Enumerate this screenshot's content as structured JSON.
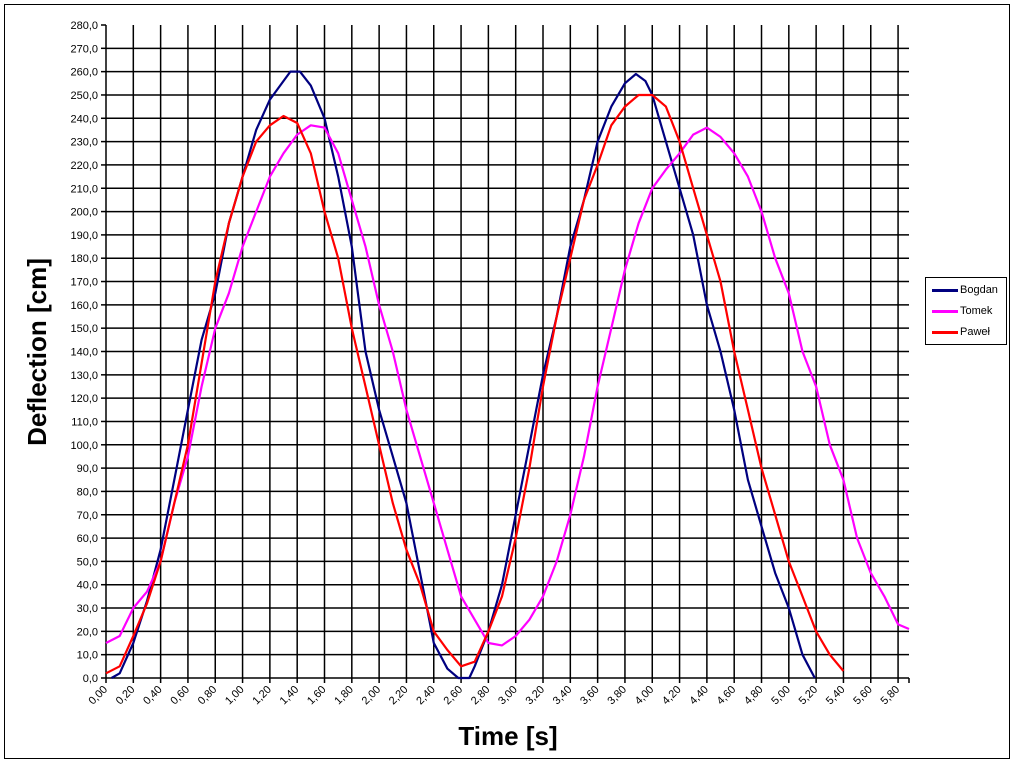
{
  "chart_data": {
    "type": "line",
    "xlabel": "Time [s]",
    "ylabel": "Deflection [cm]",
    "xlim": [
      0,
      5.88
    ],
    "ylim": [
      0,
      280
    ],
    "x_ticks": [
      "0,00",
      "0,20",
      "0,40",
      "0,60",
      "0,80",
      "1,00",
      "1,20",
      "1,40",
      "1,60",
      "1,80",
      "2,00",
      "2,20",
      "2,40",
      "2,60",
      "2,80",
      "3,00",
      "3,20",
      "3,40",
      "3,60",
      "3,80",
      "4,00",
      "4,20",
      "4,40",
      "4,60",
      "4,80",
      "5,00",
      "5,20",
      "5,40",
      "5,60",
      "5,80"
    ],
    "y_ticks": [
      "0,0",
      "10,0",
      "20,0",
      "30,0",
      "40,0",
      "50,0",
      "60,0",
      "70,0",
      "80,0",
      "90,0",
      "100,0",
      "110,0",
      "120,0",
      "130,0",
      "140,0",
      "150,0",
      "160,0",
      "170,0",
      "180,0",
      "190,0",
      "200,0",
      "210,0",
      "220,0",
      "230,0",
      "240,0",
      "250,0",
      "260,0",
      "270,0",
      "280,0"
    ],
    "grid": true,
    "legend_position": "right",
    "series": [
      {
        "name": "Bogdan",
        "color": "#000080",
        "x": [
          0.04,
          0.1,
          0.2,
          0.3,
          0.4,
          0.5,
          0.6,
          0.7,
          0.8,
          0.9,
          1.0,
          1.1,
          1.2,
          1.3,
          1.35,
          1.42,
          1.5,
          1.6,
          1.7,
          1.8,
          1.9,
          2.0,
          2.1,
          2.2,
          2.3,
          2.4,
          2.5,
          2.58,
          2.66,
          2.7,
          2.8,
          2.9,
          3.0,
          3.1,
          3.2,
          3.3,
          3.4,
          3.5,
          3.6,
          3.7,
          3.8,
          3.88,
          3.95,
          4.0,
          4.1,
          4.2,
          4.3,
          4.4,
          4.5,
          4.6,
          4.7,
          4.8,
          4.9,
          5.0,
          5.1,
          5.19
        ],
        "y": [
          0,
          2,
          15,
          33,
          55,
          85,
          115,
          145,
          165,
          195,
          215,
          235,
          248,
          256,
          260,
          260,
          254,
          240,
          215,
          185,
          140,
          115,
          95,
          75,
          45,
          15,
          4,
          0,
          0,
          5,
          20,
          40,
          70,
          100,
          130,
          155,
          185,
          205,
          230,
          245,
          255,
          259,
          256,
          250,
          230,
          210,
          190,
          160,
          140,
          115,
          85,
          65,
          45,
          30,
          10,
          0
        ]
      },
      {
        "name": "Tomek",
        "color": "#FF00FF",
        "x": [
          0.0,
          0.1,
          0.2,
          0.3,
          0.4,
          0.5,
          0.6,
          0.7,
          0.8,
          0.9,
          1.0,
          1.1,
          1.2,
          1.3,
          1.4,
          1.5,
          1.6,
          1.7,
          1.8,
          1.9,
          2.0,
          2.1,
          2.2,
          2.3,
          2.4,
          2.5,
          2.6,
          2.7,
          2.8,
          2.9,
          3.0,
          3.1,
          3.2,
          3.3,
          3.4,
          3.5,
          3.6,
          3.7,
          3.8,
          3.9,
          4.0,
          4.1,
          4.2,
          4.3,
          4.4,
          4.5,
          4.6,
          4.7,
          4.8,
          4.9,
          5.0,
          5.1,
          5.2,
          5.3,
          5.4,
          5.5,
          5.6,
          5.7,
          5.8,
          5.88
        ],
        "y": [
          15,
          18,
          30,
          37,
          50,
          75,
          95,
          125,
          150,
          165,
          185,
          200,
          215,
          225,
          233,
          237,
          236,
          225,
          205,
          185,
          160,
          140,
          115,
          95,
          75,
          55,
          35,
          25,
          15,
          14,
          18,
          25,
          35,
          50,
          70,
          95,
          125,
          150,
          175,
          195,
          210,
          218,
          225,
          233,
          236,
          232,
          225,
          215,
          200,
          180,
          165,
          140,
          125,
          100,
          85,
          60,
          45,
          35,
          23,
          21
        ]
      },
      {
        "name": "Paweł",
        "color": "#FF0000",
        "x": [
          0.0,
          0.1,
          0.2,
          0.3,
          0.4,
          0.5,
          0.6,
          0.7,
          0.8,
          0.9,
          1.0,
          1.1,
          1.2,
          1.3,
          1.4,
          1.5,
          1.6,
          1.7,
          1.8,
          1.9,
          2.0,
          2.1,
          2.2,
          2.3,
          2.4,
          2.5,
          2.6,
          2.7,
          2.8,
          2.9,
          3.0,
          3.1,
          3.2,
          3.3,
          3.4,
          3.5,
          3.6,
          3.7,
          3.8,
          3.9,
          4.0,
          4.1,
          4.2,
          4.3,
          4.4,
          4.5,
          4.6,
          4.7,
          4.8,
          4.9,
          5.0,
          5.1,
          5.2,
          5.3,
          5.4
        ],
        "y": [
          2,
          5,
          18,
          32,
          50,
          75,
          100,
          135,
          170,
          195,
          215,
          230,
          237,
          241,
          238,
          225,
          200,
          180,
          150,
          125,
          100,
          75,
          55,
          40,
          20,
          12,
          5,
          7,
          20,
          35,
          60,
          90,
          125,
          155,
          180,
          205,
          220,
          237,
          245,
          250,
          250,
          245,
          230,
          210,
          190,
          170,
          140,
          115,
          90,
          70,
          50,
          35,
          20,
          10,
          3
        ]
      }
    ]
  }
}
